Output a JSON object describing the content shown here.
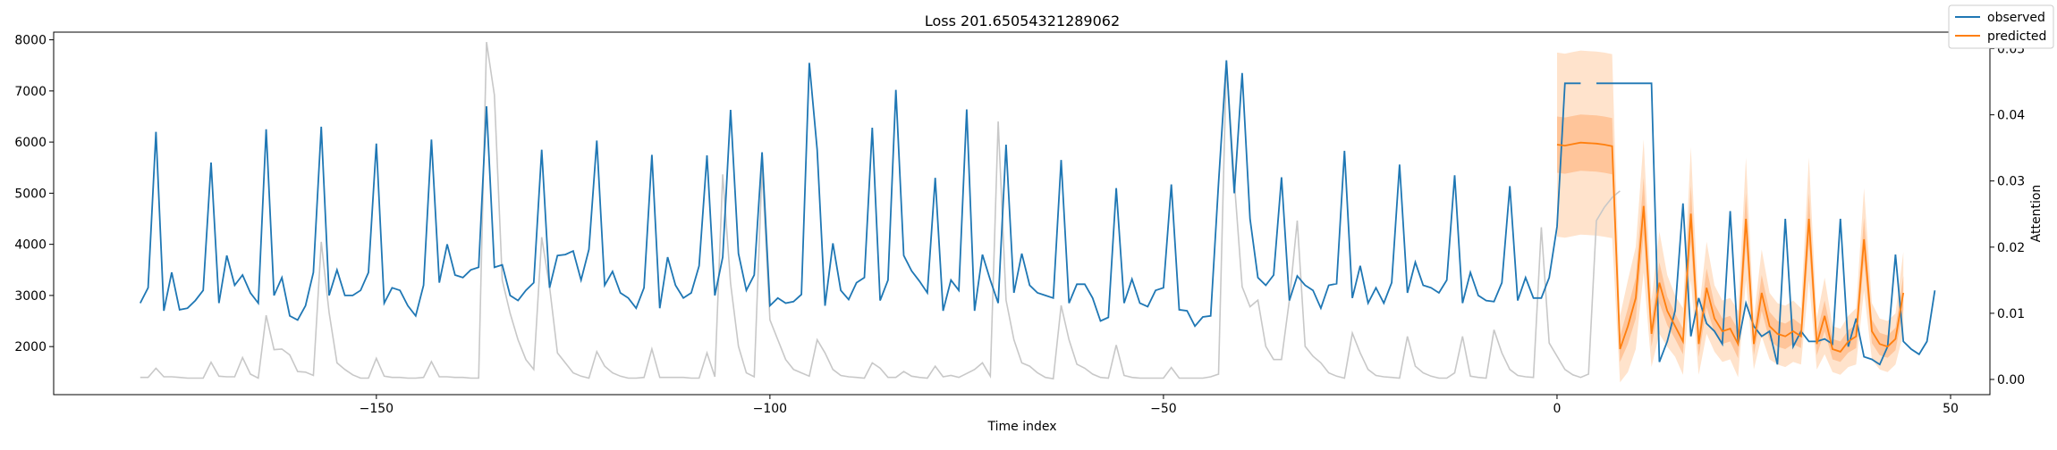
{
  "chart_data": {
    "type": "line",
    "title": "Loss 201.65054321289062",
    "xlabel": "Time index",
    "ylabel": "",
    "y2label": "Attention",
    "xlim": [
      -191,
      55
    ],
    "ylim": [
      1060,
      8150
    ],
    "y2lim": [
      -0.0023,
      0.0525
    ],
    "xticks": [
      -150,
      -100,
      -50,
      0,
      50
    ],
    "xtick_labels": [
      "−150",
      "−100",
      "−50",
      "0",
      "50"
    ],
    "yticks": [
      2000,
      3000,
      4000,
      5000,
      6000,
      7000,
      8000
    ],
    "y2ticks": [
      0.0,
      0.01,
      0.02,
      0.03,
      0.04,
      0.05
    ],
    "y2tick_labels": [
      "0.00",
      "0.01",
      "0.02",
      "0.03",
      "0.04",
      "0.05"
    ],
    "legend": {
      "position": "top-right",
      "entries": [
        {
          "name": "observed",
          "color": "#1f77b4"
        },
        {
          "name": "predicted",
          "color": "#ff7f0e"
        }
      ]
    },
    "observed": {
      "name": "observed",
      "color": "#1f77b4",
      "x_start": -180,
      "values": [
        2850,
        3150,
        6200,
        2700,
        3450,
        2720,
        2750,
        2900,
        3100,
        5600,
        2850,
        3780,
        3200,
        3400,
        3050,
        2850,
        6250,
        3000,
        3350,
        2600,
        2520,
        2800,
        3450,
        6300,
        3000,
        3500,
        3000,
        3000,
        3100,
        3450,
        5970,
        2850,
        3150,
        3100,
        2800,
        2600,
        3200,
        6050,
        3250,
        4000,
        3400,
        3350,
        3500,
        3550,
        6700,
        3550,
        3600,
        3000,
        2900,
        3100,
        3250,
        5850,
        3150,
        3780,
        3800,
        3870,
        3300,
        3900,
        6030,
        3200,
        3470,
        3050,
        2950,
        2750,
        3150,
        5750,
        2750,
        3750,
        3200,
        2950,
        3050,
        3580,
        5740,
        3000,
        3750,
        6630,
        3820,
        3100,
        3400,
        5800,
        2800,
        2950,
        2850,
        2880,
        3020,
        7550,
        5850,
        2800,
        4020,
        3100,
        2920,
        3250,
        3350,
        6280,
        2900,
        3300,
        7020,
        3780,
        3480,
        3280,
        3050,
        5300,
        2700,
        3300,
        3100,
        6640,
        2700,
        3800,
        3300,
        2850,
        5950,
        3050,
        3820,
        3200,
        3050,
        3000,
        2950,
        5650,
        2850,
        3220,
        3220,
        2950,
        2500,
        2570,
        5100,
        2850,
        3320,
        2850,
        2780,
        3100,
        3150,
        5170,
        2720,
        2700,
        2400,
        2580,
        2600,
        5200,
        7600,
        5000,
        7350,
        4500,
        3350,
        3200,
        3400,
        5310,
        2900,
        3380,
        3200,
        3100,
        2750,
        3200,
        3230,
        5830,
        2950,
        3580,
        2850,
        3150,
        2850,
        3250,
        5560,
        3050,
        3650,
        3200,
        3150,
        3050,
        3300,
        5350,
        2850,
        3450,
        3000,
        2900,
        2880,
        3250,
        5140,
        2900,
        3350,
        2950,
        2950,
        3350,
        4350,
        7150,
        7150,
        7150,
        null,
        7150,
        7150,
        7150,
        7150,
        7150,
        7150,
        7150,
        7150,
        1700,
        2100,
        2700,
        4800,
        2200,
        2950,
        2450,
        2300,
        2050,
        4650,
        2050,
        2850,
        2400,
        2200,
        2300,
        1650,
        4500,
        2000,
        2300,
        2100,
        2100,
        2150,
        2050,
        4500,
        2000,
        2550,
        1800,
        1750,
        1650,
        2000,
        3800,
        2100,
        1950,
        1850,
        2100,
        3100
      ]
    },
    "predicted": {
      "name": "predicted",
      "color": "#ff7f0e",
      "x_start": 0,
      "values": [
        5950,
        5930,
        5960,
        5990,
        5980,
        5970,
        5950,
        5920,
        1950,
        2400,
        2950,
        4750,
        2250,
        3250,
        2700,
        2400,
        2100,
        4600,
        2050,
        3150,
        2550,
        2300,
        2350,
        2050,
        4500,
        2050,
        3050,
        2400,
        2250,
        2200,
        2300,
        2200,
        4500,
        2050,
        2600,
        1950,
        1900,
        2100,
        2200,
        4100,
        2300,
        2050,
        2000,
        2150,
        3050
      ],
      "band_halfwidths_outer": [
        1800,
        1800,
        1800,
        1800,
        1800,
        1800,
        1800,
        1800,
        650,
        900,
        1000,
        1300,
        650,
        1000,
        700,
        600,
        650,
        1300,
        600,
        900,
        650,
        600,
        600,
        650,
        1200,
        500,
        850,
        650,
        600,
        600,
        600,
        550,
        1200,
        500,
        750,
        450,
        450,
        500,
        550,
        1000,
        550,
        500,
        500,
        500,
        800
      ],
      "band_halfwidths_inner": [
        550,
        550,
        550,
        550,
        550,
        550,
        550,
        550,
        250,
        350,
        400,
        550,
        250,
        400,
        280,
        250,
        250,
        550,
        250,
        380,
        280,
        250,
        250,
        280,
        500,
        220,
        350,
        280,
        250,
        250,
        250,
        230,
        500,
        220,
        300,
        200,
        200,
        220,
        230,
        420,
        230,
        220,
        220,
        220,
        330
      ]
    },
    "attention": {
      "name": "attention",
      "color": "#c8c8c8",
      "x_start": -180,
      "values": [
        0.0003,
        0.0003,
        0.0017,
        0.0004,
        0.0004,
        0.0003,
        0.0002,
        0.0002,
        0.0002,
        0.0026,
        0.0005,
        0.0004,
        0.0004,
        0.0033,
        0.0008,
        0.0002,
        0.0097,
        0.0045,
        0.0046,
        0.0037,
        0.0012,
        0.0011,
        0.0006,
        0.0208,
        0.0101,
        0.0025,
        0.0015,
        0.0007,
        0.0002,
        0.0002,
        0.0032,
        0.0005,
        0.0003,
        0.0003,
        0.0002,
        0.0002,
        0.0003,
        0.0027,
        0.0004,
        0.0004,
        0.0003,
        0.0003,
        0.0002,
        0.0002,
        0.051,
        0.043,
        0.015,
        0.01,
        0.006,
        0.003,
        0.0015,
        0.0215,
        0.014,
        0.004,
        0.0025,
        0.001,
        0.0005,
        0.0002,
        0.0042,
        0.002,
        0.001,
        0.0005,
        0.0002,
        0.0002,
        0.0003,
        0.0046,
        0.0003,
        0.0003,
        0.0003,
        0.0003,
        0.0002,
        0.0002,
        0.004,
        0.0004,
        0.031,
        0.0145,
        0.005,
        0.001,
        0.0004,
        0.032,
        0.009,
        0.006,
        0.003,
        0.0015,
        0.001,
        0.0005,
        0.006,
        0.004,
        0.0015,
        0.0006,
        0.0004,
        0.0003,
        0.0002,
        0.0025,
        0.0017,
        0.0003,
        0.0003,
        0.0012,
        0.0005,
        0.0003,
        0.0002,
        0.002,
        0.0004,
        0.0006,
        0.0003,
        0.0009,
        0.0015,
        0.0025,
        0.0005,
        0.039,
        0.012,
        0.006,
        0.0025,
        0.002,
        0.001,
        0.0003,
        0.0001,
        0.0112,
        0.006,
        0.0023,
        0.0017,
        0.0008,
        0.0003,
        0.0002,
        0.0052,
        0.0006,
        0.0003,
        0.0002,
        0.0002,
        0.0002,
        0.0002,
        0.0018,
        0.0002,
        0.0002,
        0.0002,
        0.0002,
        0.0004,
        0.0008,
        0.048,
        0.03,
        0.014,
        0.011,
        0.012,
        0.005,
        0.003,
        0.003,
        0.012,
        0.024,
        0.005,
        0.0035,
        0.0025,
        0.001,
        0.0005,
        0.0002,
        0.007,
        0.004,
        0.0015,
        0.0006,
        0.0004,
        0.0003,
        0.0002,
        0.0065,
        0.002,
        0.001,
        0.0005,
        0.0002,
        0.0002,
        0.001,
        0.0065,
        0.0005,
        0.0003,
        0.0002,
        0.0075,
        0.004,
        0.0015,
        0.0006,
        0.0004,
        0.0003,
        0.023,
        0.0055,
        0.0035,
        0.0015,
        0.0007,
        0.0003,
        0.0008,
        0.024,
        0.026,
        0.0275,
        0.0285
      ]
    }
  }
}
